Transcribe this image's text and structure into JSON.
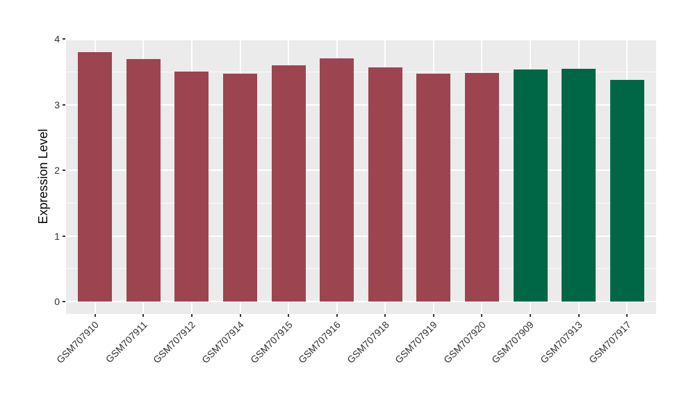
{
  "figure": {
    "background": "#FFFFFF",
    "panel_background": "#EBEBEB",
    "gridline_color": "#FFFFFF",
    "axis_text_color": "#303030",
    "axis_title_color": "#000000"
  },
  "chart_data": {
    "type": "bar",
    "title": "",
    "xlabel": "",
    "ylabel": "Expression Level",
    "ylim": [
      0,
      4
    ],
    "yticks": [
      0,
      1,
      2,
      3,
      4
    ],
    "yticks_minor": [
      0.5,
      1.5,
      2.5,
      3.5
    ],
    "grid": "on (white major + minor horizontal, white major vertical at category centers, ggplot style)",
    "legend": "none",
    "x_label_rotation_deg": 45,
    "categories": [
      "GSM707910",
      "GSM707911",
      "GSM707912",
      "GSM707914",
      "GSM707915",
      "GSM707916",
      "GSM707918",
      "GSM707919",
      "GSM707920",
      "GSM707909",
      "GSM707913",
      "GSM707917"
    ],
    "values": [
      3.8,
      3.7,
      3.51,
      3.47,
      3.6,
      3.71,
      3.57,
      3.47,
      3.48,
      3.54,
      3.55,
      3.38
    ],
    "bar_groups": [
      "red",
      "red",
      "red",
      "red",
      "red",
      "red",
      "red",
      "red",
      "red",
      "green",
      "green",
      "green"
    ],
    "palette": {
      "red": "#9C4450",
      "green": "#006746"
    }
  }
}
